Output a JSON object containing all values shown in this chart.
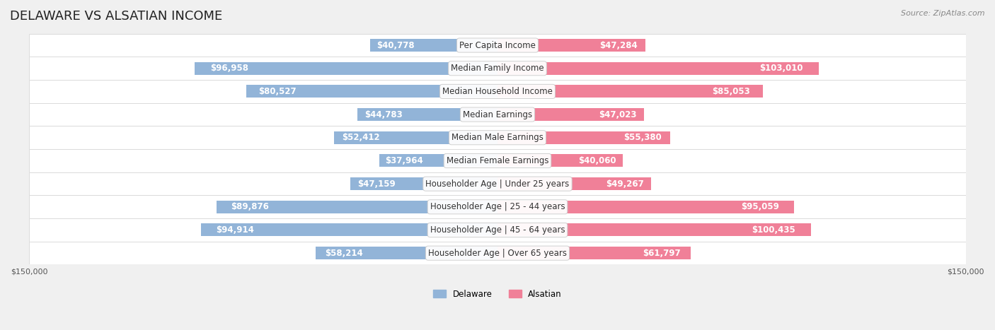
{
  "title": "DELAWARE VS ALSATIAN INCOME",
  "source": "Source: ZipAtlas.com",
  "categories": [
    "Per Capita Income",
    "Median Family Income",
    "Median Household Income",
    "Median Earnings",
    "Median Male Earnings",
    "Median Female Earnings",
    "Householder Age | Under 25 years",
    "Householder Age | 25 - 44 years",
    "Householder Age | 45 - 64 years",
    "Householder Age | Over 65 years"
  ],
  "delaware_values": [
    40778,
    96958,
    80527,
    44783,
    52412,
    37964,
    47159,
    89876,
    94914,
    58214
  ],
  "alsatian_values": [
    47284,
    103010,
    85053,
    47023,
    55380,
    40060,
    49267,
    95059,
    100435,
    61797
  ],
  "delaware_labels": [
    "$40,778",
    "$96,958",
    "$80,527",
    "$44,783",
    "$52,412",
    "$37,964",
    "$47,159",
    "$89,876",
    "$94,914",
    "$58,214"
  ],
  "alsatian_labels": [
    "$47,284",
    "$103,010",
    "$85,053",
    "$47,023",
    "$55,380",
    "$40,060",
    "$49,267",
    "$95,059",
    "$100,435",
    "$61,797"
  ],
  "delaware_color": "#92b4d8",
  "alsatian_color": "#f08098",
  "delaware_label_color_inside": "#ffffff",
  "delaware_label_color_outside": "#555555",
  "alsatian_label_color_inside": "#ffffff",
  "alsatian_label_color_outside": "#555555",
  "background_color": "#f0f0f0",
  "row_bg_color": "#f8f8f8",
  "max_value": 150000,
  "legend_delaware": "Delaware",
  "legend_alsatian": "Alsatian",
  "title_fontsize": 13,
  "label_fontsize": 8.5,
  "category_fontsize": 8.5,
  "axis_fontsize": 8,
  "bar_height": 0.55
}
